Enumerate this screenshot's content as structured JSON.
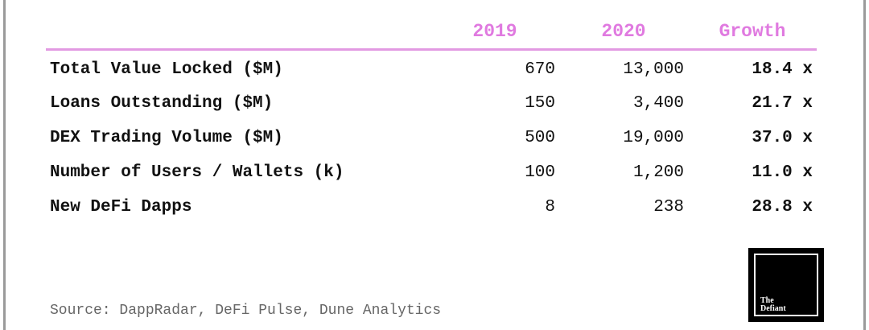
{
  "table": {
    "header": [
      "2019",
      "2020",
      "Growth"
    ],
    "rows": [
      [
        "Total Value Locked ($M)",
        "670",
        "13,000",
        "18.4 x"
      ],
      [
        "Loans Outstanding ($M)",
        "150",
        "3,400",
        "21.7 x"
      ],
      [
        "DEX Trading Volume ($M)",
        "500",
        "19,000",
        "37.0 x"
      ],
      [
        "Number of Users / Wallets (k)",
        "100",
        "1,200",
        "11.0 x"
      ],
      [
        "New DeFi Dapps",
        "8",
        "238",
        "28.8 x"
      ]
    ]
  },
  "footer": {
    "source": "Source: DappRadar, DeFi Pulse, Dune Analytics"
  },
  "logo": {
    "line1": "The",
    "line2": "Defiant"
  }
}
